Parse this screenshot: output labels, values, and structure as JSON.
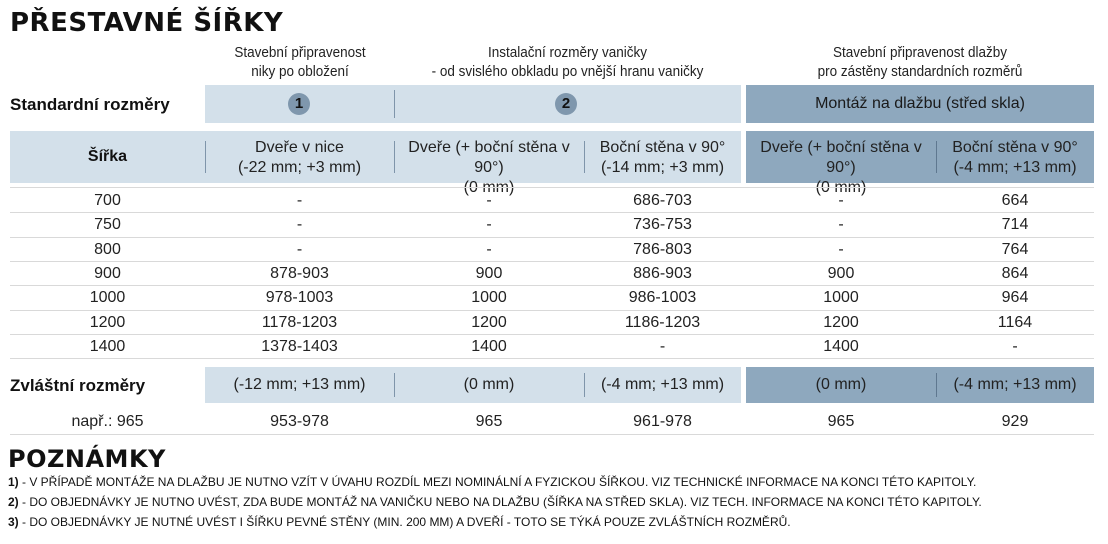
{
  "title": "PŘESTAVNÉ ŠÍŘKY",
  "group_headers": {
    "g1_line1": "Stavební připravenost",
    "g1_line2": "niky po obložení",
    "g2_line1": "Instalační rozměry vaničky",
    "g2_line2": "- od svislého obkladu po vnější hranu vaničky",
    "g3_line1": "Stavební připravenost dlažby",
    "g3_line2": "pro zástěny standardních rozměrů"
  },
  "standard_row": {
    "label": "Standardní rozměry",
    "badge1": "1",
    "badge2": "2",
    "dark_label": "Montáž na dlažbu (střed skla)"
  },
  "columns": {
    "width_label": "Šířka",
    "c1_line1": "Dveře v nice",
    "c1_line2": "(-22 mm; +3 mm)",
    "c2_line1": "Dveře (+ boční stěna v 90°)",
    "c2_line2": "(0 mm)",
    "c3_line1": "Boční stěna v 90°",
    "c3_line2": "(-14 mm; +3 mm)",
    "c4_line1": "Dveře (+ boční stěna v 90°)",
    "c4_line2": "(0 mm)",
    "c5_line1": "Boční stěna v 90°",
    "c5_line2": "(-4 mm; +13 mm)"
  },
  "rows": [
    [
      "700",
      "-",
      "-",
      "686-703",
      "-",
      "664"
    ],
    [
      "750",
      "-",
      "-",
      "736-753",
      "-",
      "714"
    ],
    [
      "800",
      "-",
      "-",
      "786-803",
      "-",
      "764"
    ],
    [
      "900",
      "878-903",
      "900",
      "886-903",
      "900",
      "864"
    ],
    [
      "1000",
      "978-1003",
      "1000",
      "986-1003",
      "1000",
      "964"
    ],
    [
      "1200",
      "1178-1203",
      "1200",
      "1186-1203",
      "1200",
      "1164"
    ],
    [
      "1400",
      "1378-1403",
      "1400",
      "-",
      "1400",
      "-"
    ]
  ],
  "special_row": {
    "label": "Zvláštní rozměry",
    "c1": "(-12 mm; +13 mm)",
    "c2": "(0 mm)",
    "c3": "(-4 mm; +13 mm)",
    "c4": "(0 mm)",
    "c5": "(-4 mm; +13 mm)"
  },
  "example_row": [
    "např.: 965",
    "953-978",
    "965",
    "961-978",
    "965",
    "929"
  ],
  "notes": {
    "title": "POZNÁMKY",
    "n1_num": "1)",
    "n1_text": " - V PŘÍPADĚ MONTÁŽE NA DLAŽBU JE NUTNO VZÍT V ÚVAHU ROZDÍL MEZI NOMINÁLNÍ A FYZICKOU ŠÍŘKOU. VIZ TECHNICKÉ INFORMACE NA KONCI TÉTO KAPITOLY.",
    "n2_num": "2)",
    "n2_text": " - DO OBJEDNÁVKY JE NUTNO UVÉST, ZDA BUDE MONTÁŽ NA VANIČKU NEBO NA DLAŽBU (ŠÍŘKA NA STŘED SKLA). VIZ TECH. INFORMACE NA KONCI TÉTO KAPITOLY.",
    "n3_num": "3)",
    "n3_text": " - DO OBJEDNÁVKY JE NUTNÉ UVÉST I ŠÍŘKU PEVNÉ STĚNY (MIN. 200 MM) A DVEŘÍ - TOTO SE TÝKÁ POUZE ZVLÁŠTNÍCH ROZMĚRŮ."
  },
  "colors": {
    "light_band": "#d3e0ea",
    "dark_band": "#8ea8be",
    "badge": "#7f97ad"
  }
}
